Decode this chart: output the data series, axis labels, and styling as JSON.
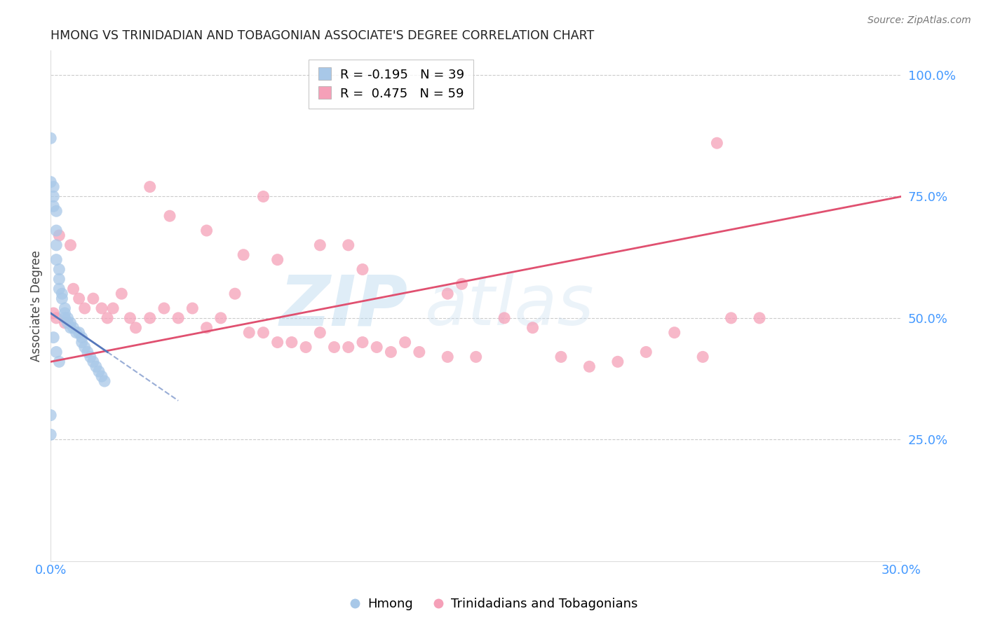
{
  "title": "HMONG VS TRINIDADIAN AND TOBAGONIAN ASSOCIATE'S DEGREE CORRELATION CHART",
  "source": "Source: ZipAtlas.com",
  "ylabel": "Associate's Degree",
  "right_yticks": [
    "100.0%",
    "75.0%",
    "50.0%",
    "25.0%"
  ],
  "right_ytick_vals": [
    100,
    75,
    50,
    25
  ],
  "watermark_zip": "ZIP",
  "watermark_atlas": "atlas",
  "legend_entry1": "R = -0.195   N = 39",
  "legend_entry2": "R =  0.475   N = 59",
  "hmong_color": "#a8c8e8",
  "trinidadian_color": "#f5a0b8",
  "trendline_hmong_color": "#5577bb",
  "trendline_trini_color": "#e05070",
  "background_color": "#ffffff",
  "grid_color": "#cccccc",
  "axis_color": "#4499ff",
  "hmong_scatter": {
    "x": [
      0.0,
      0.0,
      0.1,
      0.1,
      0.1,
      0.2,
      0.2,
      0.2,
      0.2,
      0.3,
      0.3,
      0.3,
      0.4,
      0.4,
      0.5,
      0.5,
      0.5,
      0.6,
      0.6,
      0.7,
      0.7,
      0.8,
      0.9,
      1.0,
      1.1,
      1.1,
      1.2,
      1.3,
      1.4,
      1.5,
      1.6,
      1.7,
      1.8,
      1.9,
      0.0,
      0.0,
      0.1,
      0.2,
      0.3
    ],
    "y": [
      87,
      78,
      77,
      75,
      73,
      72,
      68,
      65,
      62,
      60,
      58,
      56,
      55,
      54,
      52,
      51,
      50,
      50,
      49,
      49,
      48,
      48,
      47,
      47,
      46,
      45,
      44,
      43,
      42,
      41,
      40,
      39,
      38,
      37,
      30,
      26,
      46,
      43,
      41
    ]
  },
  "trinidadian_scatter": {
    "x": [
      0.1,
      0.2,
      0.3,
      0.5,
      0.7,
      0.8,
      1.0,
      1.2,
      1.5,
      1.8,
      2.0,
      2.2,
      2.5,
      2.8,
      3.0,
      3.5,
      4.0,
      4.5,
      5.0,
      5.5,
      6.0,
      6.5,
      7.0,
      7.5,
      8.0,
      8.5,
      9.0,
      9.5,
      10.0,
      10.5,
      11.0,
      11.5,
      12.0,
      13.0,
      14.0,
      15.0,
      16.0,
      17.0,
      18.0,
      19.0,
      20.0,
      21.0,
      22.0,
      23.0,
      24.0,
      25.0,
      3.5,
      4.2,
      5.5,
      6.8,
      8.0,
      9.5,
      11.0,
      12.5,
      14.5,
      7.5,
      10.5,
      14.0,
      23.5
    ],
    "y": [
      51,
      50,
      67,
      49,
      65,
      56,
      54,
      52,
      54,
      52,
      50,
      52,
      55,
      50,
      48,
      50,
      52,
      50,
      52,
      48,
      50,
      55,
      47,
      47,
      45,
      45,
      44,
      47,
      44,
      44,
      45,
      44,
      43,
      43,
      42,
      42,
      50,
      48,
      42,
      40,
      41,
      43,
      47,
      42,
      50,
      50,
      77,
      71,
      68,
      63,
      62,
      65,
      60,
      45,
      57,
      75,
      65,
      55,
      86
    ]
  },
  "hmong_trendline": {
    "x": [
      0.0,
      2.0
    ],
    "y": [
      51,
      43
    ]
  },
  "hmong_trendline_ext": {
    "x": [
      2.0,
      4.5
    ],
    "y": [
      43,
      33
    ]
  },
  "trini_trendline": {
    "x": [
      0.0,
      30.0
    ],
    "y": [
      41,
      75
    ]
  },
  "xlim": [
    0.0,
    30.0
  ],
  "ylim": [
    0.0,
    105
  ],
  "xtick_positions": [
    0.0,
    5.0,
    10.0,
    15.0,
    20.0,
    25.0,
    30.0
  ],
  "xtick_labels": [
    "0.0%",
    "",
    "",
    "",
    "",
    "",
    "30.0%"
  ]
}
